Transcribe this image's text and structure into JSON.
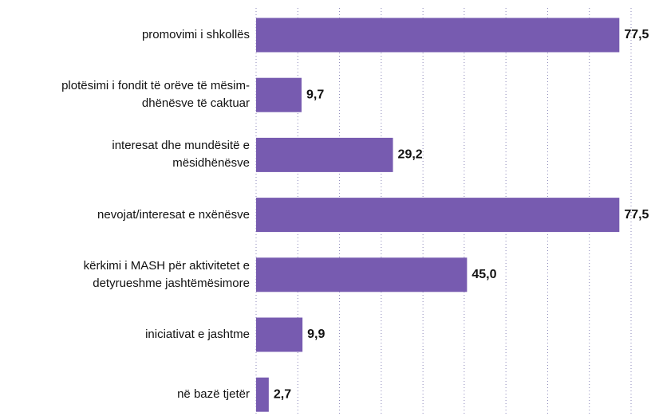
{
  "chart_data": {
    "type": "barh",
    "categories": [
      "promovimi i shkollës",
      "plotësimi i fondit të orëve të mësim-\ndhënësve të caktuar",
      "interesat dhe mundësitë e\nmësidhënësve",
      "nevojat/interesat e nxënësve",
      "kërkimi i MASH për aktivitetet e\ndetyrueshme jashtëmësimore",
      "iniciativat e jashtme",
      "në bazë tjetër"
    ],
    "values": [
      77.5,
      9.7,
      29.2,
      77.5,
      45.0,
      9.9,
      2.7
    ],
    "value_labels": [
      "77,5",
      "9,7",
      "29,2",
      "77,5",
      "45,0",
      "9,9",
      "2,7"
    ],
    "color": "#775bb0",
    "xlim": [
      0,
      80
    ],
    "xticks": [
      0,
      8.9,
      17.8,
      26.7,
      35.6,
      44.4,
      53.3,
      62.2,
      71.1,
      80
    ],
    "grid": true
  }
}
